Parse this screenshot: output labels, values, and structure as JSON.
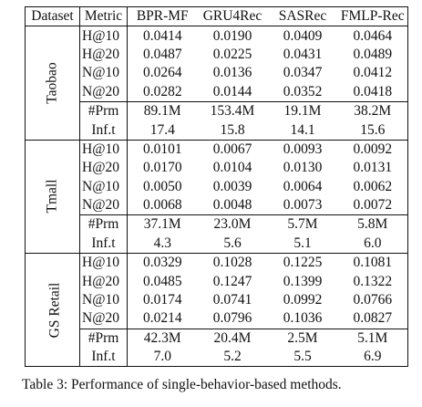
{
  "table": {
    "header": {
      "dataset": "Dataset",
      "metric": "Metric",
      "methods": [
        "BPR-MF",
        "GRU4Rec",
        "SASRec",
        "FMLP-Rec"
      ]
    },
    "groups": [
      {
        "dataset": "Taobao",
        "metrics": [
          {
            "name": "H@10",
            "values": [
              "0.0414",
              "0.0190",
              "0.0409",
              "0.0464"
            ]
          },
          {
            "name": "H@20",
            "values": [
              "0.0487",
              "0.0225",
              "0.0431",
              "0.0489"
            ]
          },
          {
            "name": "N@10",
            "values": [
              "0.0264",
              "0.0136",
              "0.0347",
              "0.0412"
            ]
          },
          {
            "name": "N@20",
            "values": [
              "0.0282",
              "0.0144",
              "0.0352",
              "0.0418"
            ]
          }
        ],
        "stats": [
          {
            "name": "#Prm",
            "values": [
              "89.1M",
              "153.4M",
              "19.1M",
              "38.2M"
            ]
          },
          {
            "name": "Inf.t",
            "values": [
              "17.4",
              "15.8",
              "14.1",
              "15.6"
            ]
          }
        ]
      },
      {
        "dataset": "Tmall",
        "metrics": [
          {
            "name": "H@10",
            "values": [
              "0.0101",
              "0.0067",
              "0.0093",
              "0.0092"
            ]
          },
          {
            "name": "H@20",
            "values": [
              "0.0170",
              "0.0104",
              "0.0130",
              "0.0131"
            ]
          },
          {
            "name": "N@10",
            "values": [
              "0.0050",
              "0.0039",
              "0.0064",
              "0.0062"
            ]
          },
          {
            "name": "N@20",
            "values": [
              "0.0068",
              "0.0048",
              "0.0073",
              "0.0072"
            ]
          }
        ],
        "stats": [
          {
            "name": "#Prm",
            "values": [
              "37.1M",
              "23.0M",
              "5.7M",
              "5.8M"
            ]
          },
          {
            "name": "Inf.t",
            "values": [
              "4.3",
              "5.6",
              "5.1",
              "6.0"
            ]
          }
        ]
      },
      {
        "dataset": "GS Retail",
        "metrics": [
          {
            "name": "H@10",
            "values": [
              "0.0329",
              "0.1028",
              "0.1225",
              "0.1081"
            ]
          },
          {
            "name": "H@20",
            "values": [
              "0.0485",
              "0.1247",
              "0.1399",
              "0.1322"
            ]
          },
          {
            "name": "N@10",
            "values": [
              "0.0174",
              "0.0741",
              "0.0992",
              "0.0766"
            ]
          },
          {
            "name": "N@20",
            "values": [
              "0.0214",
              "0.0796",
              "0.1036",
              "0.0827"
            ]
          }
        ],
        "stats": [
          {
            "name": "#Prm",
            "values": [
              "42.3M",
              "20.4M",
              "2.5M",
              "5.1M"
            ]
          },
          {
            "name": "Inf.t",
            "values": [
              "7.0",
              "5.2",
              "5.5",
              "6.9"
            ]
          }
        ]
      }
    ]
  },
  "caption": "Table 3: Performance of single-behavior-based methods."
}
